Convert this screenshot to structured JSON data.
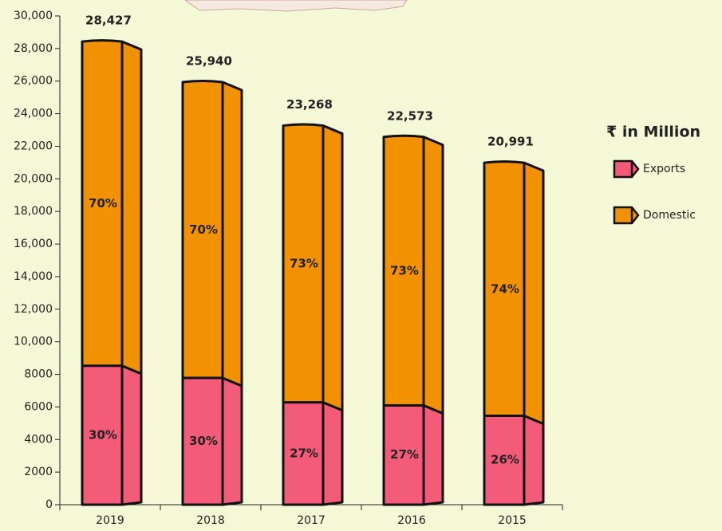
{
  "chart_data": {
    "type": "bar",
    "stacked": true,
    "legend_title": "₹ in Million",
    "categories": [
      "2019",
      "2018",
      "2017",
      "2016",
      "2015"
    ],
    "series": [
      {
        "name": "Exports",
        "color": "#f45b78",
        "values": [
          8528,
          7782,
          6282,
          6095,
          5458
        ],
        "value_labels": [
          "30%",
          "30%",
          "27%",
          "27%",
          "26%"
        ]
      },
      {
        "name": "Domestic",
        "color": "#f39200",
        "values": [
          19899,
          18158,
          16986,
          16478,
          15533
        ],
        "value_labels": [
          "70%",
          "70%",
          "73%",
          "73%",
          "74%"
        ]
      }
    ],
    "totals": [
      28427,
      25940,
      23268,
      22573,
      20991
    ],
    "total_labels": [
      "28,427",
      "25,940",
      "23,268",
      "22,573",
      "20,991"
    ],
    "ylim": [
      0,
      30000
    ],
    "yticks": [
      0,
      2000,
      4000,
      6000,
      8000,
      {
        "value": 10000,
        "label": "10,000"
      },
      {
        "value": 12000,
        "label": "12,000"
      },
      {
        "value": 14000,
        "label": "14,000"
      },
      {
        "value": 16000,
        "label": "16,000"
      },
      {
        "value": 18000,
        "label": "18,000"
      },
      {
        "value": 20000,
        "label": "20,000"
      },
      {
        "value": 22000,
        "label": "22,000"
      },
      {
        "value": 24000,
        "label": "24,000"
      },
      {
        "value": 26000,
        "label": "26,000"
      },
      {
        "value": 28000,
        "label": "28,000"
      },
      {
        "value": 30000,
        "label": "30,000"
      }
    ]
  }
}
